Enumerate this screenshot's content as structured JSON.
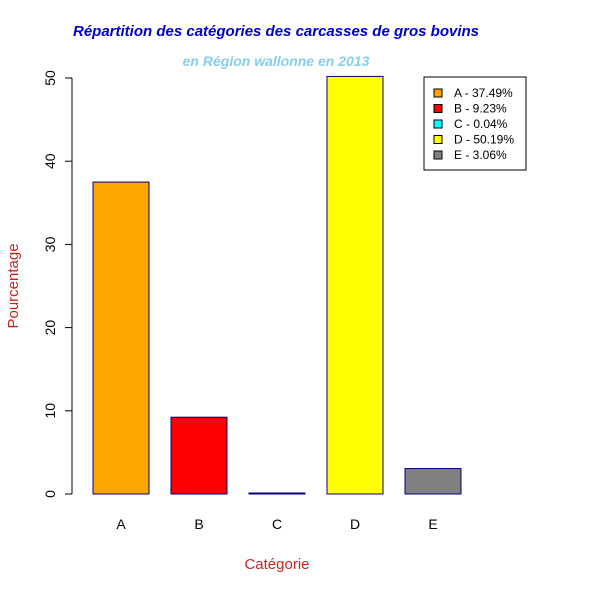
{
  "colors": {
    "title": "#0000cc",
    "subtitle": "#87ceeb",
    "axis_label": "#cc2222",
    "bar_border": "#000080"
  },
  "chart_data": {
    "type": "bar",
    "title": "Répartition des catégories des carcasses de gros bovins",
    "subtitle": "en Région wallonne en 2013",
    "xlabel": "Catégorie",
    "ylabel": "Pourcentage",
    "categories": [
      "A",
      "B",
      "C",
      "D",
      "E"
    ],
    "values": [
      37.49,
      9.23,
      0.04,
      50.19,
      3.06
    ],
    "bar_colors": [
      "#ffa500",
      "#ff0000",
      "#00ffff",
      "#ffff00",
      "#808080"
    ],
    "ylim": [
      0,
      50
    ],
    "yticks": [
      "0",
      "10",
      "20",
      "30",
      "40",
      "50"
    ],
    "grid": false,
    "legend_position": "top-right",
    "legend": [
      "A - 37.49%",
      "B - 9.23%",
      "C - 0.04%",
      "D - 50.19%",
      "E - 3.06%"
    ]
  }
}
